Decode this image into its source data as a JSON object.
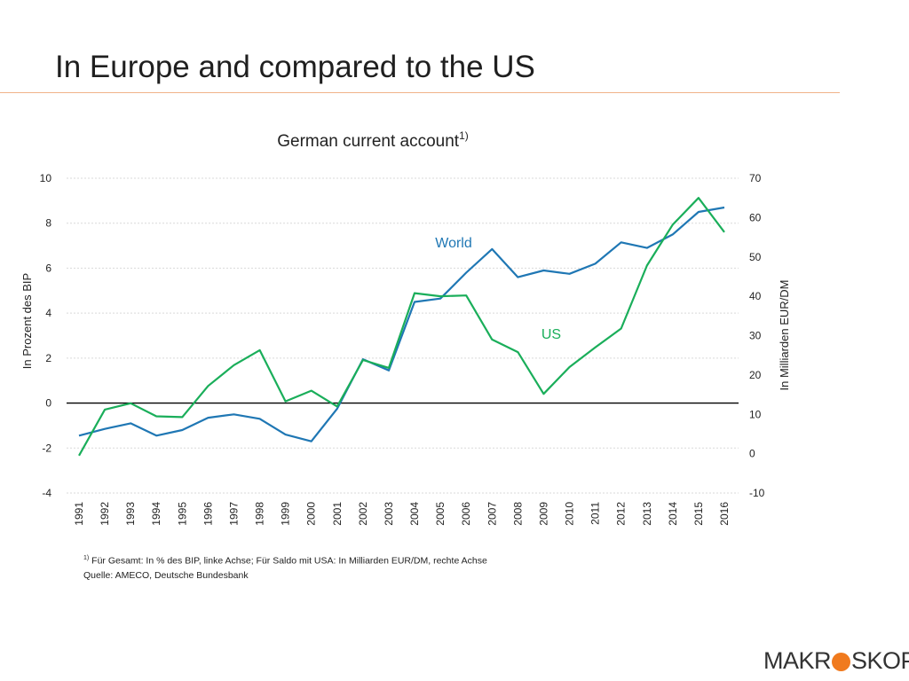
{
  "slide": {
    "title": "In Europe and compared to the US"
  },
  "chart_data": {
    "type": "line",
    "title": "German current account",
    "title_superscript": "1)",
    "ylabel_left": "In Prozent des BIP",
    "ylabel_right": "In Milliarden EUR/DM",
    "ylim_left": [
      -4,
      10
    ],
    "ylim_right": [
      -10,
      70
    ],
    "yticks_left": [
      -4,
      -2,
      0,
      2,
      4,
      6,
      8,
      10
    ],
    "yticks_right": [
      -10,
      0,
      10,
      20,
      30,
      40,
      50,
      60,
      70
    ],
    "grid": true,
    "x": [
      "1991",
      "1992",
      "1993",
      "1994",
      "1995",
      "1996",
      "1997",
      "1998",
      "1999",
      "2000",
      "2001",
      "2002",
      "2003",
      "2004",
      "2005",
      "2006",
      "2007",
      "2008",
      "2009",
      "2010",
      "2011",
      "2012",
      "2013",
      "2014",
      "2015",
      "2016"
    ],
    "series": [
      {
        "name": "World",
        "axis": "left",
        "color": "#1f77b4",
        "values": [
          -1.45,
          -1.15,
          -0.9,
          -1.45,
          -1.2,
          -0.65,
          -0.5,
          -0.7,
          -1.4,
          -1.7,
          -0.25,
          1.95,
          1.45,
          4.5,
          4.65,
          5.8,
          6.85,
          5.6,
          5.9,
          5.75,
          6.2,
          7.15,
          6.9,
          7.5,
          8.5,
          8.7
        ]
      },
      {
        "name": "US",
        "axis": "right",
        "color": "#1aae5a",
        "values": [
          -0.5,
          11.2,
          12.8,
          9.5,
          9.3,
          17.2,
          22.5,
          26.3,
          13.3,
          16.0,
          12.0,
          23.8,
          21.8,
          40.8,
          40.0,
          40.2,
          29.0,
          25.8,
          15.2,
          22.0,
          27.0,
          31.8,
          47.8,
          58.2,
          65.0,
          56.3
        ]
      }
    ],
    "annotations": [
      {
        "text": "World",
        "series": "World"
      },
      {
        "text": "US",
        "series": "US"
      }
    ]
  },
  "footnote": {
    "marker": "1)",
    "line1": "Für Gesamt: In % des BIP, linke Achse; Für Saldo mit USA: In Milliarden EUR/DM, rechte Achse",
    "line2": "Quelle: AMECO, Deutsche Bundesbank"
  },
  "logo": {
    "part1": "MAKR",
    "part2": "SKOP",
    "dot_color": "#f07a1e"
  }
}
